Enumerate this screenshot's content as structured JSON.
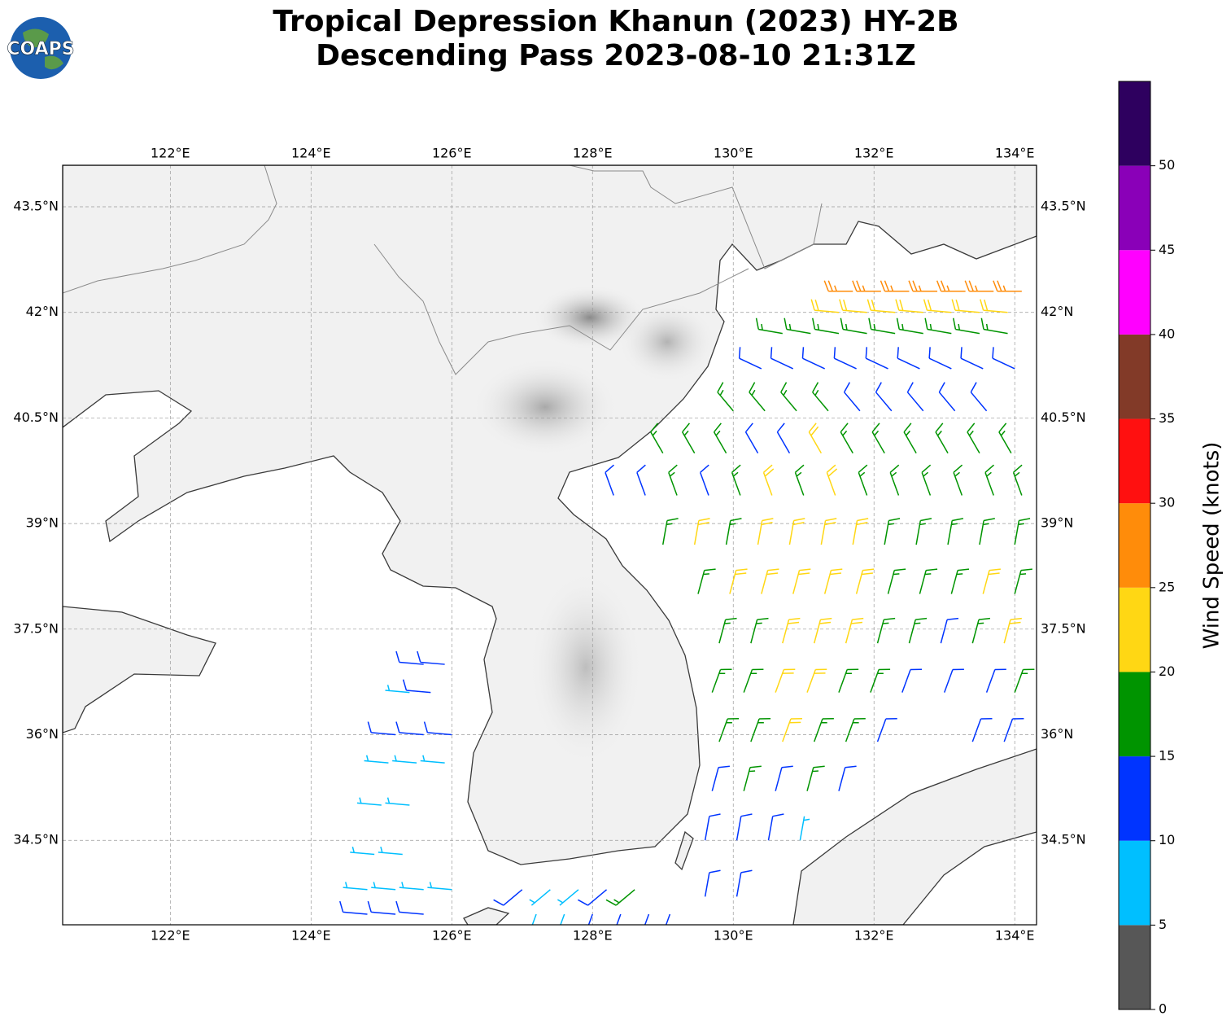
{
  "title": [
    "Tropical Depression Khanun (2023) HY-2B",
    "Descending Pass 2023-08-10 21:31Z"
  ],
  "logo_text": "COAPS",
  "map": {
    "xlim": [
      120.47,
      134.31
    ],
    "ylim": [
      33.3,
      44.09
    ],
    "grid": true,
    "xticks": [
      {
        "value": 122,
        "label": "122°E"
      },
      {
        "value": 124,
        "label": "124°E"
      },
      {
        "value": 126,
        "label": "126°E"
      },
      {
        "value": 128,
        "label": "128°E"
      },
      {
        "value": 130,
        "label": "130°E"
      },
      {
        "value": 132,
        "label": "132°E"
      },
      {
        "value": 134,
        "label": "134°E"
      }
    ],
    "yticks": [
      {
        "value": 34.5,
        "label": "34.5°N"
      },
      {
        "value": 36,
        "label": "36°N"
      },
      {
        "value": 37.5,
        "label": "37.5°N"
      },
      {
        "value": 39,
        "label": "39°N"
      },
      {
        "value": 40.5,
        "label": "40.5°N"
      },
      {
        "value": 42,
        "label": "42°N"
      },
      {
        "value": 43.5,
        "label": "43.5°N"
      }
    ]
  },
  "colorbar": {
    "label": "Wind Speed (knots)",
    "lim": [
      0,
      55
    ],
    "bounds": [
      0,
      5,
      10,
      15,
      20,
      25,
      30,
      35,
      40,
      45,
      50,
      55
    ],
    "colors": [
      "#575757",
      "#00bfff",
      "#0034ff",
      "#009400",
      "#ffd714",
      "#ff8c0a",
      "#ff1010",
      "#823a28",
      "#ff00ff",
      "#8a00b8",
      "#2e005f"
    ],
    "ticks": [
      0,
      5,
      10,
      15,
      20,
      25,
      30,
      35,
      40,
      45,
      50
    ]
  },
  "wind_barbs": [
    [
      131.7,
      42.3,
      27,
      270
    ],
    [
      132.1,
      42.3,
      27,
      270
    ],
    [
      132.5,
      42.3,
      27,
      270
    ],
    [
      132.9,
      42.3,
      28,
      270
    ],
    [
      133.3,
      42.3,
      27,
      270
    ],
    [
      133.7,
      42.3,
      27,
      270
    ],
    [
      134.1,
      42.3,
      26,
      270
    ],
    [
      131.5,
      42.0,
      22,
      275
    ],
    [
      131.9,
      42.0,
      23,
      275
    ],
    [
      132.3,
      42.0,
      22,
      275
    ],
    [
      132.7,
      42.0,
      22,
      275
    ],
    [
      133.1,
      42.0,
      23,
      275
    ],
    [
      133.5,
      42.0,
      22,
      275
    ],
    [
      133.9,
      42.0,
      22,
      275
    ],
    [
      130.7,
      41.7,
      18,
      280
    ],
    [
      131.1,
      41.7,
      18,
      280
    ],
    [
      131.5,
      41.7,
      18,
      280
    ],
    [
      131.9,
      41.7,
      17,
      280
    ],
    [
      132.3,
      41.7,
      18,
      280
    ],
    [
      132.7,
      41.7,
      18,
      280
    ],
    [
      133.1,
      41.7,
      17,
      280
    ],
    [
      133.5,
      41.7,
      18,
      280
    ],
    [
      133.9,
      41.7,
      17,
      280
    ],
    [
      130.4,
      41.2,
      13,
      295
    ],
    [
      130.85,
      41.2,
      13,
      295
    ],
    [
      131.3,
      41.2,
      13,
      295
    ],
    [
      131.75,
      41.2,
      12,
      295
    ],
    [
      132.2,
      41.2,
      13,
      295
    ],
    [
      132.65,
      41.2,
      13,
      295
    ],
    [
      133.1,
      41.2,
      12,
      295
    ],
    [
      133.55,
      41.2,
      12,
      295
    ],
    [
      134.0,
      41.2,
      13,
      295
    ],
    [
      130.0,
      40.6,
      17,
      320
    ],
    [
      130.45,
      40.6,
      17,
      320
    ],
    [
      130.9,
      40.6,
      17,
      320
    ],
    [
      131.35,
      40.6,
      16,
      320
    ],
    [
      131.8,
      40.6,
      12,
      320
    ],
    [
      132.25,
      40.6,
      12,
      320
    ],
    [
      132.7,
      40.6,
      13,
      320
    ],
    [
      133.15,
      40.6,
      12,
      320
    ],
    [
      133.6,
      40.6,
      12,
      320
    ],
    [
      129.0,
      40.0,
      16,
      330
    ],
    [
      129.45,
      40.0,
      16,
      330
    ],
    [
      129.9,
      40.0,
      17,
      330
    ],
    [
      130.35,
      40.0,
      13,
      330
    ],
    [
      130.8,
      40.0,
      13,
      330
    ],
    [
      131.25,
      40.0,
      21,
      330
    ],
    [
      131.7,
      40.0,
      18,
      330
    ],
    [
      132.15,
      40.0,
      17,
      330
    ],
    [
      132.6,
      40.0,
      17,
      330
    ],
    [
      133.05,
      40.0,
      17,
      330
    ],
    [
      133.5,
      40.0,
      17,
      330
    ],
    [
      133.95,
      40.0,
      17,
      330
    ],
    [
      128.3,
      39.4,
      12,
      340
    ],
    [
      128.75,
      39.4,
      13,
      340
    ],
    [
      129.2,
      39.4,
      16,
      340
    ],
    [
      129.65,
      39.4,
      14,
      340
    ],
    [
      130.1,
      39.4,
      17,
      340
    ],
    [
      130.55,
      39.4,
      21,
      340
    ],
    [
      131.0,
      39.4,
      18,
      340
    ],
    [
      131.45,
      39.4,
      22,
      340
    ],
    [
      131.9,
      39.4,
      18,
      340
    ],
    [
      132.35,
      39.4,
      17,
      340
    ],
    [
      132.8,
      39.4,
      17,
      340
    ],
    [
      133.25,
      39.4,
      17,
      340
    ],
    [
      133.7,
      39.4,
      17,
      340
    ],
    [
      134.1,
      39.4,
      17,
      340
    ],
    [
      129.0,
      38.7,
      17,
      10
    ],
    [
      129.45,
      38.7,
      22,
      10
    ],
    [
      129.9,
      38.7,
      18,
      10
    ],
    [
      130.35,
      38.7,
      23,
      10
    ],
    [
      130.8,
      38.7,
      22,
      10
    ],
    [
      131.25,
      38.7,
      22,
      10
    ],
    [
      131.7,
      38.7,
      22,
      10
    ],
    [
      132.15,
      38.7,
      19,
      10
    ],
    [
      132.6,
      38.7,
      18,
      10
    ],
    [
      133.05,
      38.7,
      17,
      10
    ],
    [
      133.5,
      38.7,
      16,
      10
    ],
    [
      134.0,
      38.7,
      17,
      10
    ],
    [
      129.5,
      38.0,
      16,
      15
    ],
    [
      129.95,
      38.0,
      21,
      15
    ],
    [
      130.4,
      38.0,
      23,
      15
    ],
    [
      130.85,
      38.0,
      22,
      15
    ],
    [
      131.3,
      38.0,
      22,
      15
    ],
    [
      131.75,
      38.0,
      21,
      15
    ],
    [
      132.2,
      38.0,
      19,
      15
    ],
    [
      132.65,
      38.0,
      18,
      15
    ],
    [
      133.1,
      38.0,
      17,
      15
    ],
    [
      133.55,
      38.0,
      21,
      15
    ],
    [
      134.0,
      38.0,
      18,
      15
    ],
    [
      129.8,
      37.3,
      17,
      15
    ],
    [
      130.25,
      37.3,
      18,
      15
    ],
    [
      130.7,
      37.3,
      22,
      15
    ],
    [
      131.15,
      37.3,
      22,
      15
    ],
    [
      131.6,
      37.3,
      21,
      15
    ],
    [
      132.05,
      37.3,
      19,
      15
    ],
    [
      132.5,
      37.3,
      18,
      15
    ],
    [
      132.95,
      37.3,
      14,
      15
    ],
    [
      133.4,
      37.3,
      17,
      15
    ],
    [
      133.85,
      37.3,
      21,
      15
    ],
    [
      129.7,
      36.6,
      16,
      20
    ],
    [
      130.15,
      36.6,
      18,
      20
    ],
    [
      130.6,
      36.6,
      21,
      20
    ],
    [
      131.05,
      36.6,
      22,
      20
    ],
    [
      131.5,
      36.6,
      19,
      20
    ],
    [
      131.95,
      36.6,
      17,
      20
    ],
    [
      132.4,
      36.6,
      14,
      20
    ],
    [
      133.0,
      36.6,
      13,
      20
    ],
    [
      133.6,
      36.6,
      12,
      20
    ],
    [
      134.0,
      36.6,
      16,
      20
    ],
    [
      129.8,
      35.9,
      16,
      20
    ],
    [
      130.25,
      35.9,
      17,
      20
    ],
    [
      130.7,
      35.9,
      21,
      20
    ],
    [
      131.15,
      35.9,
      18,
      20
    ],
    [
      131.6,
      35.9,
      16,
      20
    ],
    [
      132.05,
      35.9,
      13,
      20
    ],
    [
      133.4,
      35.9,
      11,
      20
    ],
    [
      133.85,
      35.9,
      12,
      20
    ],
    [
      129.7,
      35.2,
      14,
      15
    ],
    [
      130.15,
      35.2,
      16,
      15
    ],
    [
      130.6,
      35.2,
      14,
      15
    ],
    [
      131.05,
      35.2,
      16,
      15
    ],
    [
      131.5,
      35.2,
      13,
      15
    ],
    [
      129.6,
      34.5,
      13,
      10
    ],
    [
      130.05,
      34.5,
      12,
      10
    ],
    [
      130.5,
      34.5,
      13,
      10
    ],
    [
      130.95,
      34.5,
      9,
      10
    ],
    [
      129.6,
      33.7,
      11,
      10
    ],
    [
      130.05,
      33.7,
      12,
      10
    ],
    [
      125.6,
      37.0,
      11,
      275
    ],
    [
      125.9,
      37.0,
      11,
      275
    ],
    [
      125.4,
      36.6,
      9,
      275
    ],
    [
      125.7,
      36.6,
      11,
      275
    ],
    [
      125.2,
      36.0,
      12,
      275
    ],
    [
      125.6,
      36.0,
      13,
      275
    ],
    [
      126.0,
      36.0,
      11,
      275
    ],
    [
      125.1,
      35.6,
      9,
      275
    ],
    [
      125.5,
      35.6,
      8,
      275
    ],
    [
      125.9,
      35.6,
      9,
      275
    ],
    [
      125.0,
      35.0,
      8,
      275
    ],
    [
      125.4,
      35.0,
      7,
      275
    ],
    [
      124.9,
      34.3,
      8,
      275
    ],
    [
      125.3,
      34.3,
      7,
      275
    ],
    [
      124.8,
      33.8,
      8,
      275
    ],
    [
      125.2,
      33.8,
      9,
      275
    ],
    [
      125.6,
      33.8,
      8,
      275
    ],
    [
      126.0,
      33.8,
      7,
      275
    ],
    [
      124.8,
      33.45,
      11,
      275
    ],
    [
      125.2,
      33.45,
      12,
      275
    ],
    [
      125.6,
      33.45,
      11,
      275
    ],
    [
      127.0,
      33.8,
      12,
      230
    ],
    [
      127.4,
      33.8,
      9,
      230
    ],
    [
      127.8,
      33.8,
      8,
      230
    ],
    [
      128.2,
      33.8,
      11,
      230
    ],
    [
      128.6,
      33.8,
      16,
      230
    ],
    [
      127.2,
      33.45,
      8,
      200
    ],
    [
      127.6,
      33.45,
      9,
      200
    ],
    [
      128.0,
      33.45,
      12,
      200
    ],
    [
      128.4,
      33.45,
      12,
      200
    ],
    [
      128.8,
      33.45,
      13,
      200
    ],
    [
      129.1,
      33.45,
      12,
      200
    ]
  ]
}
